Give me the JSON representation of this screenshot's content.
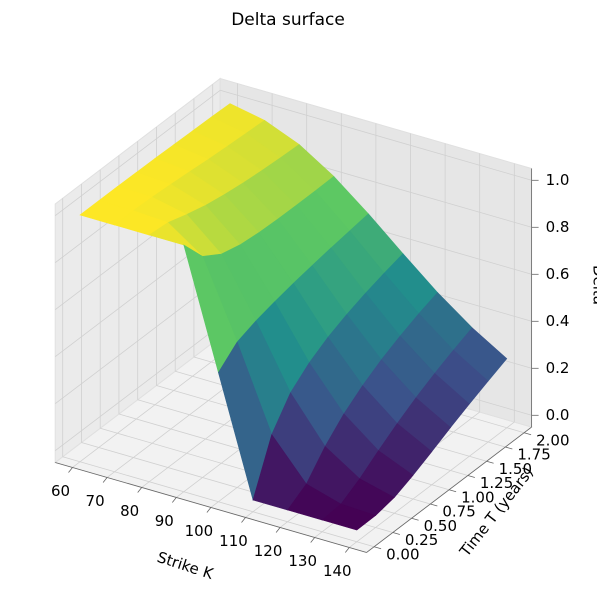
{
  "chart_data": {
    "type": "surface",
    "title": "Delta surface",
    "x_label": "Strike K",
    "y_label": "Time T (years)",
    "z_label": "Delta",
    "colormap": "viridis",
    "x": [
      60,
      70,
      80,
      90,
      100,
      110,
      120,
      130,
      140
    ],
    "y": [
      0,
      0.25,
      0.5,
      0.75,
      1,
      1.25,
      1.5,
      1.75,
      2
    ],
    "z": [
      [
        1,
        1,
        1,
        1,
        0.5,
        0,
        0,
        0,
        0
      ],
      [
        1,
        1,
        0.992,
        0.891,
        0.569,
        0.218,
        0.05,
        0.007,
        0.001
      ],
      [
        1,
        0.997,
        0.966,
        0.84,
        0.598,
        0.335,
        0.149,
        0.054,
        0.017
      ],
      [
        0.999,
        0.991,
        0.944,
        0.819,
        0.619,
        0.402,
        0.227,
        0.113,
        0.051
      ],
      [
        0.998,
        0.984,
        0.929,
        0.81,
        0.637,
        0.45,
        0.287,
        0.168,
        0.091
      ],
      [
        0.996,
        0.976,
        0.918,
        0.806,
        0.652,
        0.486,
        0.336,
        0.217,
        0.133
      ],
      [
        0.994,
        0.97,
        0.91,
        0.805,
        0.666,
        0.516,
        0.376,
        0.26,
        0.172
      ],
      [
        0.992,
        0.965,
        0.904,
        0.805,
        0.678,
        0.541,
        0.411,
        0.298,
        0.209
      ],
      [
        0.989,
        0.96,
        0.9,
        0.807,
        0.69,
        0.563,
        0.44,
        0.333,
        0.244
      ]
    ],
    "xlim": [
      55,
      145
    ],
    "ylim": [
      -0.1,
      2.1
    ],
    "zlim": [
      -0.05,
      1.05
    ],
    "xticks": [
      60,
      70,
      80,
      90,
      100,
      110,
      120,
      130,
      140
    ],
    "yticks": [
      {
        "value": 0,
        "label": "0.00"
      },
      0.25,
      {
        "value": 0.5,
        "label": "0.50"
      },
      0.75,
      {
        "value": 1,
        "label": "1.00"
      },
      1.25,
      {
        "value": 1.5,
        "label": "1.50"
      },
      1.75,
      {
        "value": 2,
        "label": "2.00"
      }
    ],
    "zticks": [
      {
        "value": 0,
        "label": "0.0"
      },
      0.2,
      0.4,
      0.6,
      0.8,
      {
        "value": 1,
        "label": "1.0"
      }
    ],
    "grid": true
  }
}
